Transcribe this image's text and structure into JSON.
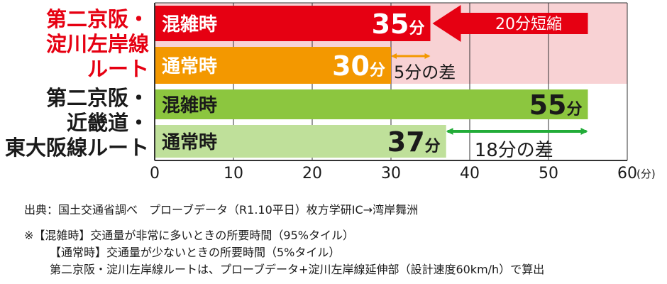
{
  "chart_data": {
    "type": "bar",
    "orientation": "horizontal",
    "x_unit": "(分)",
    "xlim": [
      0,
      60
    ],
    "x_ticks": [
      0,
      10,
      20,
      30,
      40,
      50,
      60
    ],
    "routes": [
      {
        "label_lines": [
          "第二京阪・",
          "淀川左岸線",
          "ルート"
        ],
        "label_color": "#e60012",
        "highlight_color": "#f8d2d4",
        "bars": [
          {
            "label": "混雑時",
            "value": 35,
            "value_label": "35分",
            "color": "#e60012",
            "text_color": "#ffffff"
          },
          {
            "label": "通常時",
            "value": 30,
            "value_label": "30分",
            "color": "#f39800",
            "text_color": "#ffffff"
          }
        ]
      },
      {
        "label_lines": [
          "第二京阪・",
          "近畿道・",
          "東大阪線ルート"
        ],
        "label_color": "#1a1a1a",
        "highlight_color": "",
        "bars": [
          {
            "label": "混雑時",
            "value": 55,
            "value_label": "55分",
            "color": "#8cc63f",
            "text_color": "#1a1a1a"
          },
          {
            "label": "通常時",
            "value": 37,
            "value_label": "37分",
            "color": "#bfe09a",
            "text_color": "#1a1a1a"
          }
        ]
      }
    ],
    "annotations": [
      {
        "type": "big-arrow",
        "text": "20分短縮",
        "from": 55,
        "to": 35,
        "route": 0,
        "bar": 0,
        "color": "#e60012"
      },
      {
        "type": "double-arrow",
        "text": "5分の差",
        "from": 30,
        "to": 35,
        "route": 0,
        "bar": 1,
        "color": "#f39800"
      },
      {
        "type": "double-arrow",
        "text": "18分の差",
        "from": 37,
        "to": 55,
        "route": 1,
        "bar": 1,
        "color": "#22ac38"
      }
    ]
  },
  "notes": {
    "source": "出典：国土交通省調べ　プローブデータ（R1.10平日）枚方学研IC→湾岸舞洲",
    "lines": [
      "※【混雑時】交通量が非常に多いときの所要時間（95%タイル）",
      "【通常時】交通量が少ないときの所要時間（5%タイル）",
      "第二京阪・淀川左岸線ルートは、プローブデータ+淀川左岸線延伸部（設計速度60km/h）で算出"
    ]
  }
}
